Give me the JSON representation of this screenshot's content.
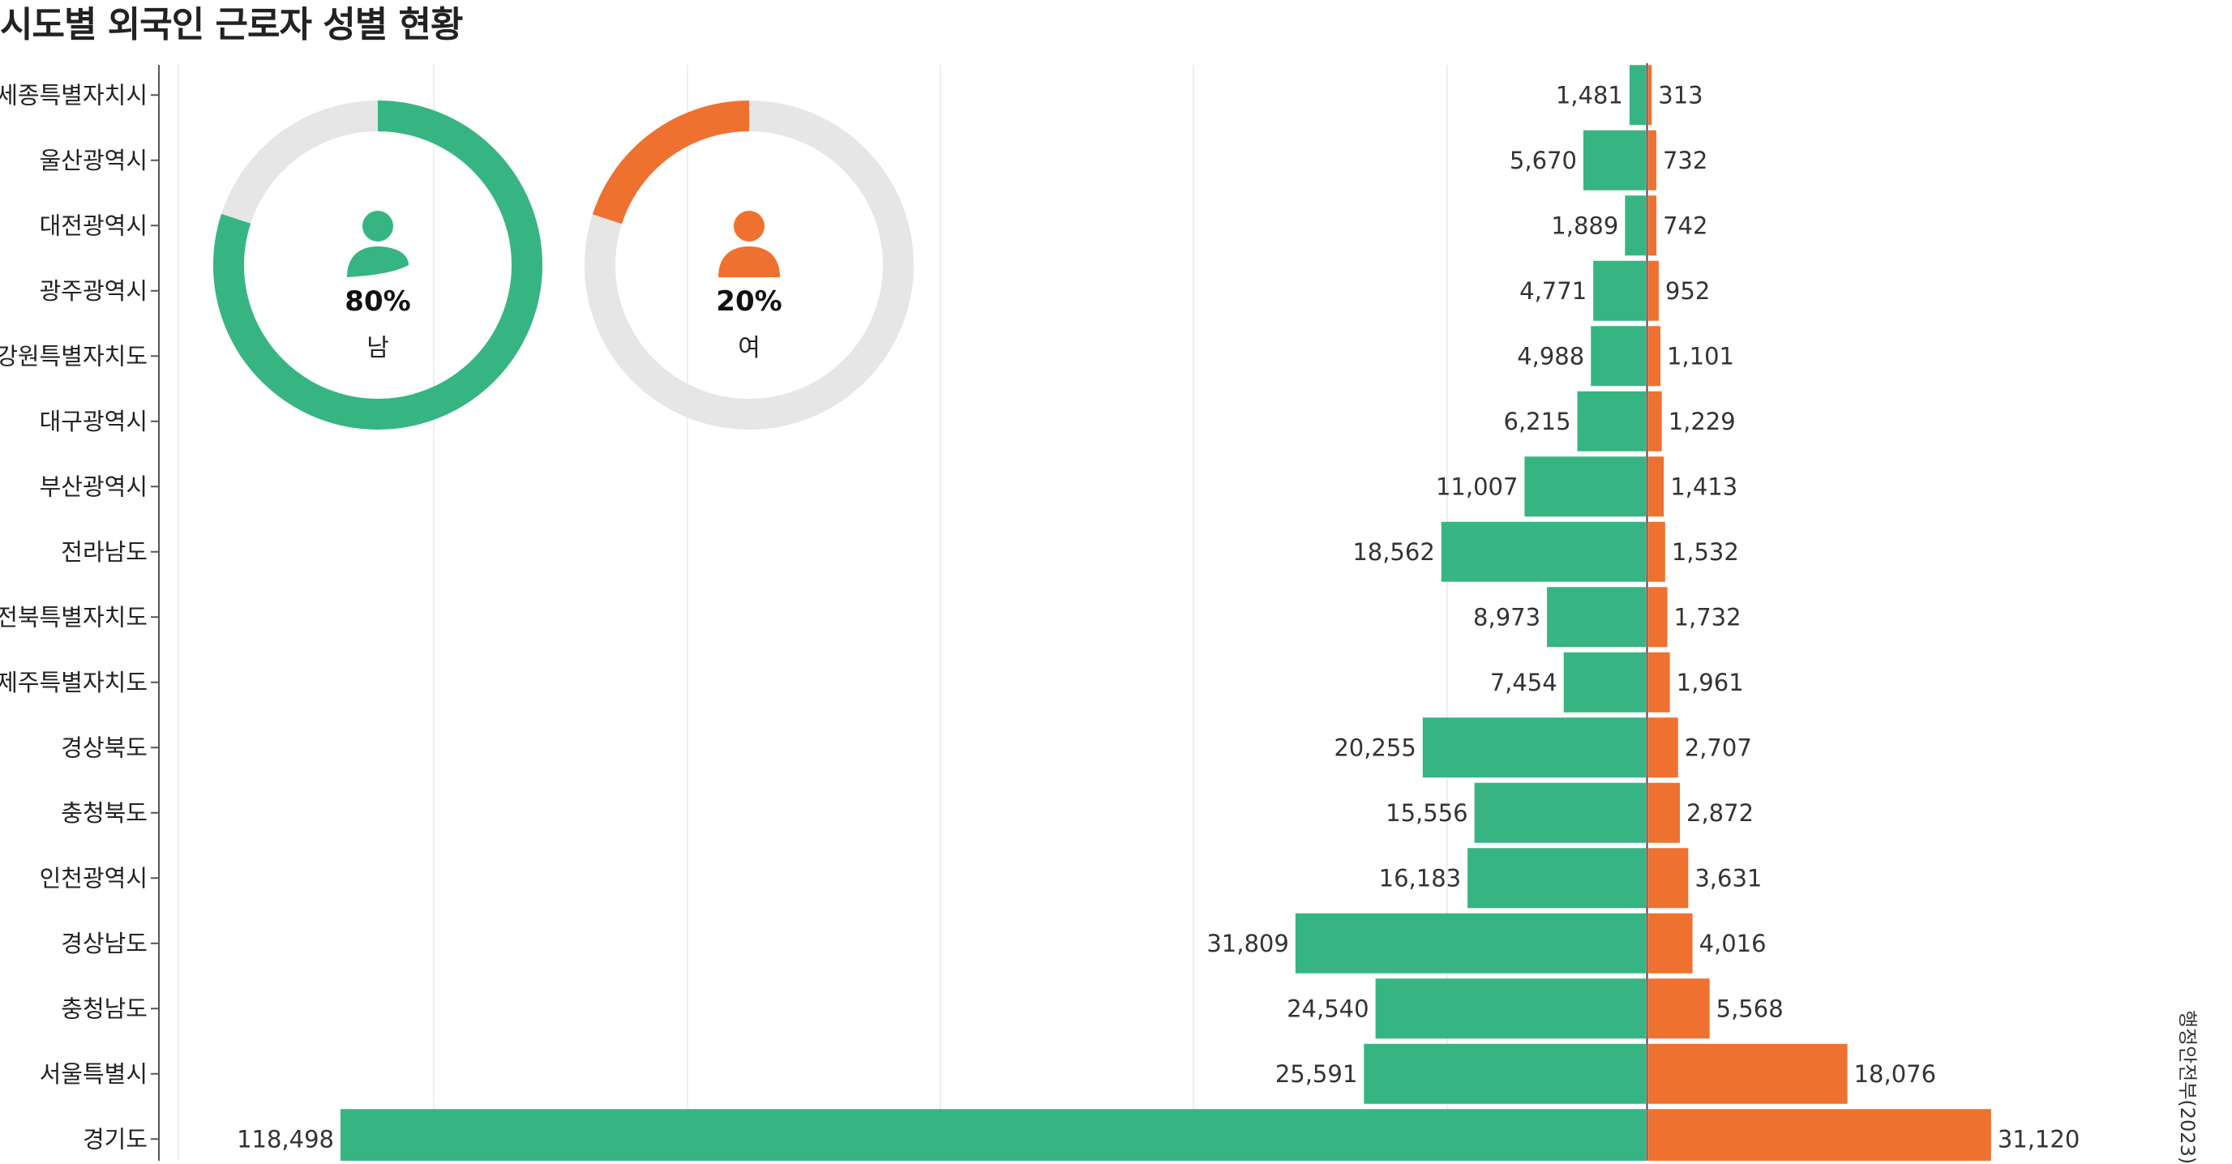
{
  "title": "시도별 외국인 근로자 성별 현황",
  "source": "행정안전부(2023)",
  "colors": {
    "male": "#36b582",
    "female": "#ef712f",
    "track": "#e6e6e6"
  },
  "gender_share": {
    "male": {
      "percent_label": "80%",
      "label": "남",
      "share": 0.8,
      "icon": "person-icon"
    },
    "female": {
      "percent_label": "20%",
      "label": "여",
      "share": 0.2,
      "icon": "person-icon"
    }
  },
  "chart_data": {
    "type": "bar",
    "orientation": "horizontal-diverging",
    "title": "시도별 외국인 근로자 성별 현황",
    "categories": [
      "세종특별자치시",
      "울산광역시",
      "대전광역시",
      "광주광역시",
      "강원특별자치도",
      "대구광역시",
      "부산광역시",
      "전라남도",
      "전북특별자치도",
      "제주특별자치도",
      "경상북도",
      "충청북도",
      "인천광역시",
      "경상남도",
      "충청남도",
      "서울특별시",
      "경기도"
    ],
    "series": [
      {
        "values": [
          1481,
          5670,
          1889,
          4771,
          4988,
          6215,
          11007,
          18562,
          8973,
          7454,
          20255,
          15556,
          16183,
          31809,
          24540,
          25591,
          118498
        ]
      },
      {
        "values": [
          313,
          732,
          742,
          952,
          1101,
          1229,
          1413,
          1532,
          1732,
          1961,
          2707,
          2872,
          3631,
          4016,
          5568,
          18076,
          31120
        ]
      }
    ],
    "value_labels_left": [
      "1,481",
      "5,670",
      "1,889",
      "4,771",
      "4,988",
      "6,215",
      "11,007",
      "18,562",
      "8,973",
      "7,454",
      "20,255",
      "15,556",
      "16,183",
      "31,809",
      "24,540",
      "25,591",
      "118,498"
    ],
    "value_labels_right": [
      "313",
      "732",
      "742",
      "952",
      "1,101",
      "1,229",
      "1,413",
      "1,532",
      "1,732",
      "1,961",
      "2,707",
      "2,872",
      "3,631",
      "4,016",
      "5,568",
      "18,076",
      "31,120"
    ],
    "grid": true
  }
}
